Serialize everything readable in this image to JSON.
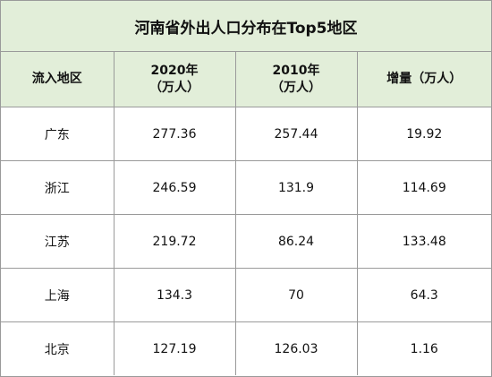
{
  "chart_data": {
    "type": "table",
    "title": "河南省外出人口分布在Top5地区",
    "columns": [
      {
        "line1": "流入地区",
        "line2": ""
      },
      {
        "line1": "2020年",
        "line2": "（万人）"
      },
      {
        "line1": "2010年",
        "line2": "（万人）"
      },
      {
        "line1": "增量（万人）",
        "line2": ""
      }
    ],
    "rows": [
      [
        "广东",
        "277.36",
        "257.44",
        "19.92"
      ],
      [
        "浙江",
        "246.59",
        "131.9",
        "114.69"
      ],
      [
        "江苏",
        "219.72",
        "86.24",
        "133.48"
      ],
      [
        "上海",
        "134.3",
        "70",
        "64.3"
      ],
      [
        "北京",
        "127.19",
        "126.03",
        "1.16"
      ]
    ]
  },
  "colors": {
    "header_bg": "#e2eed9",
    "border": "#9a9a9a",
    "text": "#111111"
  }
}
